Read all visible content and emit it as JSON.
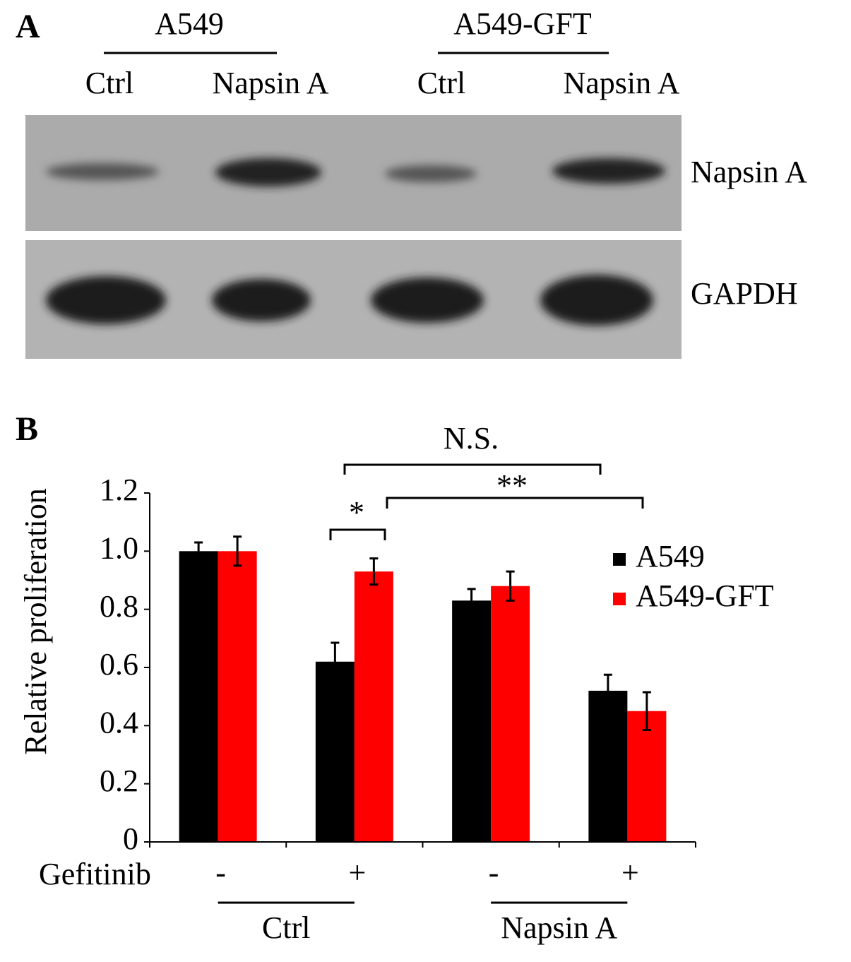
{
  "panel_a": {
    "panel_label": "A",
    "groups": [
      "A549",
      "A549-GFT"
    ],
    "lanes": [
      "Ctrl",
      "Napsin A",
      "Ctrl",
      "Napsin A"
    ],
    "rows": [
      "Napsin A",
      "GAPDH"
    ]
  },
  "chart_data": {
    "type": "bar",
    "panel_label": "B",
    "ylabel": "Relative proliferation",
    "x_label": "Gefitinib",
    "categories": [
      "-",
      "+",
      "-",
      "+"
    ],
    "groups": [
      "Ctrl",
      "Napsin A"
    ],
    "series": [
      {
        "name": "A549",
        "color": "#000000",
        "values": [
          1.0,
          0.62,
          0.83,
          0.52
        ],
        "errors": [
          0.03,
          0.065,
          0.04,
          0.055
        ]
      },
      {
        "name": "A549-GFT",
        "color": "#ff0000",
        "values": [
          1.0,
          0.93,
          0.88,
          0.45
        ],
        "errors": [
          0.05,
          0.045,
          0.05,
          0.065
        ]
      }
    ],
    "ylim": [
      0,
      1.2
    ],
    "yticks": [
      0,
      0.2,
      0.4,
      0.6,
      0.8,
      {
        "value": 1,
        "label": "1.0"
      },
      1.2
    ],
    "legend": "right",
    "annotations": [
      "N.S.",
      "**",
      "*"
    ]
  }
}
